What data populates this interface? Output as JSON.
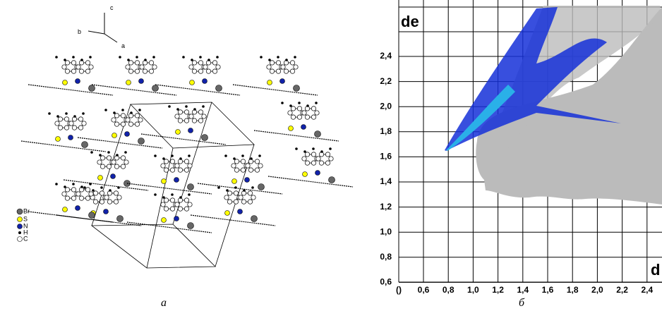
{
  "packing_diagram": {
    "axes": [
      "c",
      "b",
      "a"
    ],
    "legend": [
      "Br",
      "S",
      "N",
      "H",
      "C"
    ],
    "caption": "а"
  },
  "fingerprint_plot": {
    "y_axis_title": "de",
    "x_axis_title": "d",
    "y_labels": [
      "2,4",
      "2,2",
      "2,0",
      "1,8",
      "1,6",
      "1,4",
      "1,2",
      "1,0",
      "0,8",
      "0,6"
    ],
    "x_labels": [
      "()",
      "0,6",
      "0,8",
      "1,0",
      "1,2",
      "1,4",
      "1,6",
      "1,8",
      "2,0",
      "2,2",
      "2,4"
    ],
    "caption": "б"
  }
}
